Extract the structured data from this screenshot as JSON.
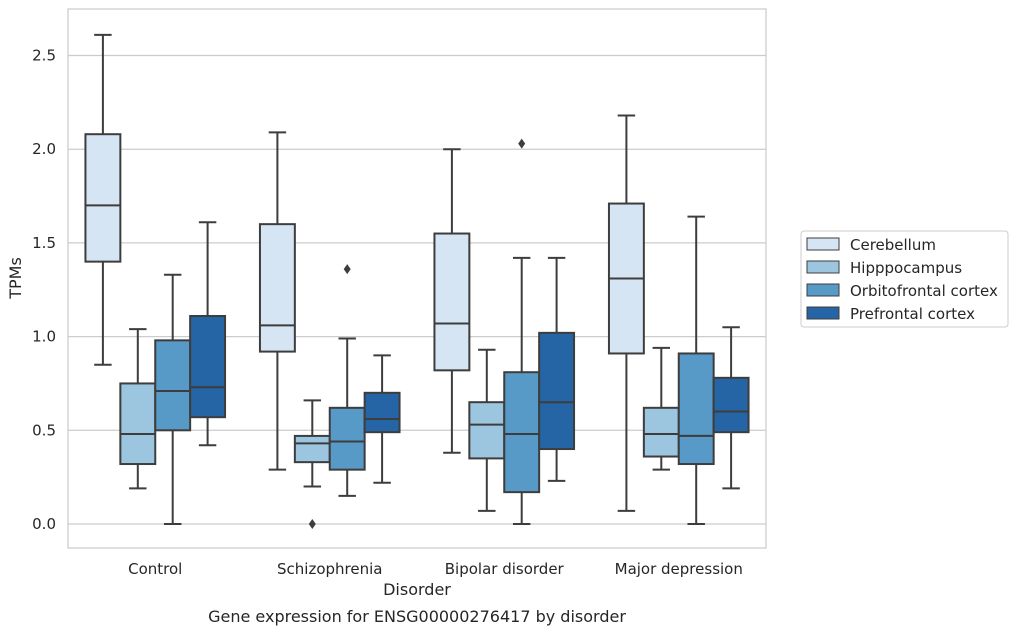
{
  "chart_data": {
    "type": "box",
    "title": "",
    "caption": "Gene expression for ENSG00000276417 by disorder",
    "xlabel": "Disorder",
    "ylabel": "TPMs",
    "ylim": [
      -0.13,
      2.75
    ],
    "yticks": [
      0.0,
      0.5,
      1.0,
      1.5,
      2.0,
      2.5
    ],
    "ytick_labels": [
      "0.0",
      "0.5",
      "1.0",
      "1.5",
      "2.0",
      "2.5"
    ],
    "grid": "horizontal",
    "legend_position": "right, outside plot",
    "categories": [
      "Control",
      "Schizophrenia",
      "Bipolar disorder",
      "Major depression"
    ],
    "series": [
      {
        "name": "Cerebellum",
        "color": "#d6e5f4",
        "boxes": [
          {
            "min": 0.85,
            "q1": 1.4,
            "median": 1.7,
            "q3": 2.08,
            "max": 2.61,
            "outliers": []
          },
          {
            "min": 0.29,
            "q1": 0.92,
            "median": 1.06,
            "q3": 1.6,
            "max": 2.09,
            "outliers": []
          },
          {
            "min": 0.38,
            "q1": 0.82,
            "median": 1.07,
            "q3": 1.55,
            "max": 2.0,
            "outliers": []
          },
          {
            "min": 0.07,
            "q1": 0.91,
            "median": 1.31,
            "q3": 1.71,
            "max": 2.18,
            "outliers": []
          }
        ]
      },
      {
        "name": "Hipppocampus",
        "color": "#9cc6e0",
        "boxes": [
          {
            "min": 0.19,
            "q1": 0.32,
            "median": 0.48,
            "q3": 0.75,
            "max": 1.04,
            "outliers": []
          },
          {
            "min": 0.2,
            "q1": 0.33,
            "median": 0.43,
            "q3": 0.47,
            "max": 0.66,
            "outliers": [
              0.0
            ]
          },
          {
            "min": 0.07,
            "q1": 0.35,
            "median": 0.53,
            "q3": 0.65,
            "max": 0.93,
            "outliers": []
          },
          {
            "min": 0.29,
            "q1": 0.36,
            "median": 0.48,
            "q3": 0.62,
            "max": 0.94,
            "outliers": []
          }
        ]
      },
      {
        "name": "Orbitofrontal cortex",
        "color": "#5799c7",
        "boxes": [
          {
            "min": 0.0,
            "q1": 0.5,
            "median": 0.71,
            "q3": 0.98,
            "max": 1.33,
            "outliers": []
          },
          {
            "min": 0.15,
            "q1": 0.29,
            "median": 0.44,
            "q3": 0.62,
            "max": 0.99,
            "outliers": [
              1.36
            ]
          },
          {
            "min": 0.0,
            "q1": 0.17,
            "median": 0.48,
            "q3": 0.81,
            "max": 1.42,
            "outliers": [
              2.03
            ]
          },
          {
            "min": 0.0,
            "q1": 0.32,
            "median": 0.47,
            "q3": 0.91,
            "max": 1.64,
            "outliers": []
          }
        ]
      },
      {
        "name": "Prefrontal cortex",
        "color": "#2565a5",
        "boxes": [
          {
            "min": 0.42,
            "q1": 0.57,
            "median": 0.73,
            "q3": 1.11,
            "max": 1.61,
            "outliers": []
          },
          {
            "min": 0.22,
            "q1": 0.49,
            "median": 0.56,
            "q3": 0.7,
            "max": 0.9,
            "outliers": []
          },
          {
            "min": 0.23,
            "q1": 0.4,
            "median": 0.65,
            "q3": 1.02,
            "max": 1.42,
            "outliers": []
          },
          {
            "min": 0.19,
            "q1": 0.49,
            "median": 0.6,
            "q3": 0.78,
            "max": 1.05,
            "outliers": []
          }
        ]
      }
    ]
  }
}
